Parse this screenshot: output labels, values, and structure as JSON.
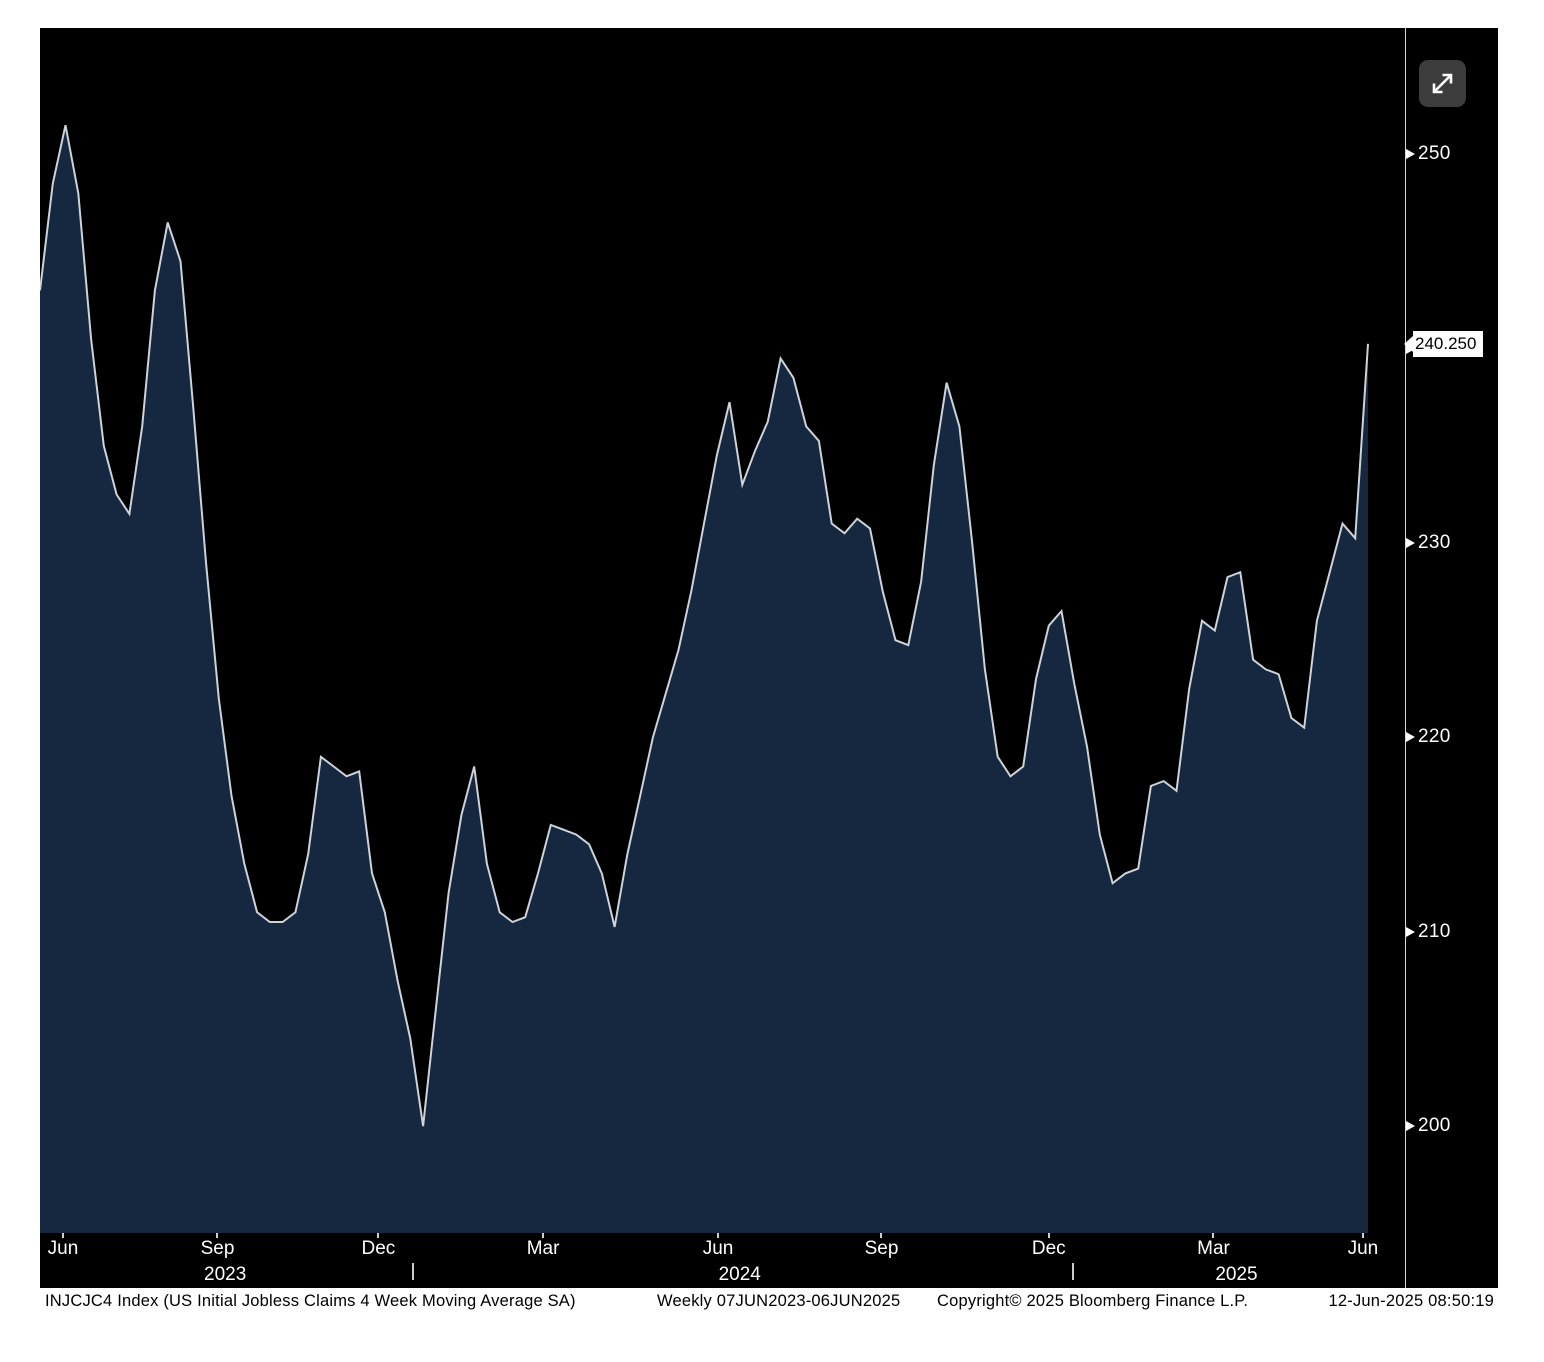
{
  "chart_data": {
    "type": "area",
    "title": "INJCJC4 Index (US Initial Jobless Claims 4 Week Moving Average SA)",
    "subtitle": "Weekly 07JUN2023-06JUN2025",
    "copyright": "Copyright© 2025 Bloomberg Finance L.P.",
    "timestamp": "12-Jun-2025 08:50:19",
    "frequency": "Weekly",
    "x_start": "07JUN2023",
    "x_end": "06JUN2025",
    "xlabel": "",
    "ylabel": "",
    "ylim": [
      194.5,
      256.5
    ],
    "y_ticks": [
      200,
      210,
      220,
      230,
      240,
      250
    ],
    "last_value": 240.25,
    "last_value_label": "240.250",
    "legend": "none",
    "grid": "off",
    "y_axis_side": "right",
    "x_ticks": [
      {
        "label": "Jun",
        "week": 1.8
      },
      {
        "label": "Sep",
        "week": 13.9
      },
      {
        "label": "Dec",
        "week": 26.5
      },
      {
        "label": "Mar",
        "week": 39.4
      },
      {
        "label": "Jun",
        "week": 53.1
      },
      {
        "label": "Sep",
        "week": 65.9
      },
      {
        "label": "Dec",
        "week": 79.0
      },
      {
        "label": "Mar",
        "week": 91.9
      },
      {
        "label": "Jun",
        "week": 103.6
      }
    ],
    "year_labels": [
      {
        "label": "2023",
        "week": 14.5
      },
      {
        "label": "2024",
        "week": 54.8
      },
      {
        "label": "2025",
        "week": 93.7
      }
    ],
    "year_separators": [
      29.2,
      80.9
    ],
    "values": [
      243.0,
      248.5,
      251.5,
      248.0,
      240.5,
      235.0,
      232.5,
      231.5,
      236.0,
      243.0,
      246.5,
      244.5,
      237.0,
      229.0,
      222.0,
      217.0,
      213.5,
      211.0,
      210.5,
      210.5,
      211.0,
      214.0,
      219.0,
      218.5,
      218.0,
      218.25,
      213.0,
      211.0,
      207.5,
      204.5,
      200.0,
      206.0,
      212.0,
      216.0,
      218.5,
      213.5,
      211.0,
      210.5,
      210.75,
      213.0,
      215.5,
      215.25,
      215.0,
      214.5,
      213.0,
      210.25,
      214.0,
      217.0,
      220.0,
      222.25,
      224.5,
      227.5,
      231.0,
      234.5,
      237.25,
      233.0,
      234.75,
      236.25,
      239.5,
      238.5,
      236.0,
      235.25,
      231.0,
      230.5,
      231.25,
      230.75,
      227.5,
      225.0,
      224.75,
      228.0,
      234.0,
      238.25,
      236.0,
      230.0,
      223.5,
      219.0,
      218.0,
      218.5,
      223.0,
      225.75,
      226.5,
      222.75,
      219.5,
      215.0,
      212.5,
      213.0,
      213.25,
      217.5,
      217.75,
      217.25,
      222.5,
      226.0,
      225.5,
      228.25,
      228.5,
      224.0,
      223.5,
      223.25,
      221.0,
      220.5,
      226.0,
      228.5,
      231.0,
      230.25,
      240.25
    ],
    "colors": {
      "background": "#000000",
      "area_fill": "#16283f",
      "line": "#ccd3da",
      "axis_text": "#ffffff",
      "value_label_bg": "#ffffff",
      "value_label_text": "#000000",
      "expand_button_bg": "#3c3c3c"
    }
  }
}
